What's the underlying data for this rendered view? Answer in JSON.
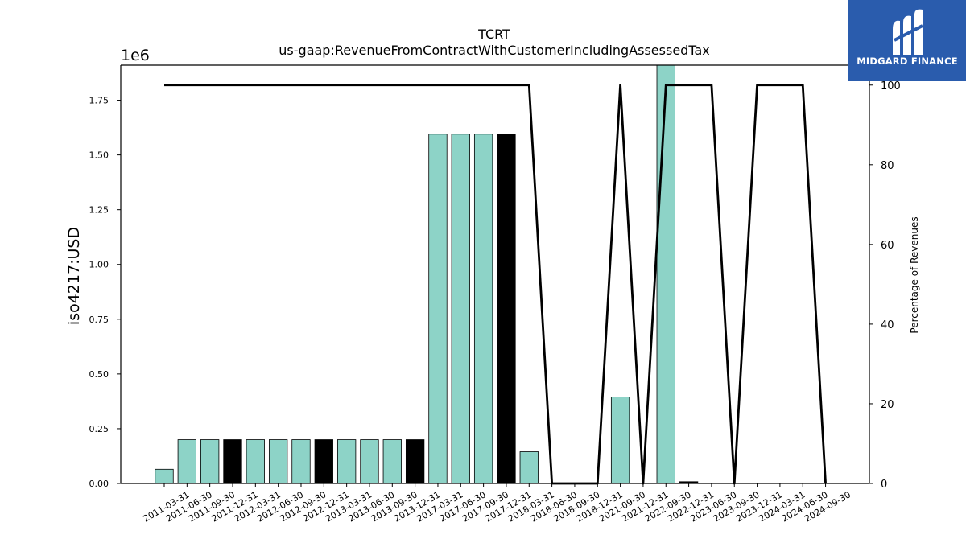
{
  "chart_data": {
    "type": "bar",
    "title": "TCRT",
    "subtitle": "us-gaap:RevenueFromContractWithCustomerIncludingAssessedTax",
    "ylabel": "iso4217:USD",
    "y_offset_label": "1e6",
    "y2label": "Percentage of Revenues",
    "ylim": [
      0,
      1910000
    ],
    "y2lim": [
      0,
      105
    ],
    "yticks": [
      "0.00",
      "0.25",
      "0.50",
      "0.75",
      "1.00",
      "1.25",
      "1.50",
      "1.75"
    ],
    "y2ticks": [
      "0",
      "20",
      "40",
      "60",
      "80",
      "100"
    ],
    "colors": {
      "bar": "#8dd3c7",
      "highlight": "#000000",
      "line": "#000000"
    },
    "categories": [
      "2011-03-31",
      "2011-06-30",
      "2011-09-30",
      "2011-12-31",
      "2012-03-31",
      "2012-06-30",
      "2012-09-30",
      "2012-12-31",
      "2013-03-31",
      "2013-06-30",
      "2013-09-30",
      "2013-12-31",
      "2017-03-31",
      "2017-06-30",
      "2017-09-30",
      "2017-12-31",
      "2018-03-31",
      "2018-06-30",
      "2018-09-30",
      "2018-12-31",
      "2021-09-30",
      "2021-12-31",
      "2022-09-30",
      "2022-12-31",
      "2023-06-30",
      "2023-09-30",
      "2023-12-31",
      "2024-03-31",
      "2024-06-30",
      "2024-09-30"
    ],
    "series": [
      {
        "values": [
          65000,
          200000,
          200000,
          200000,
          200000,
          200000,
          200000,
          200000,
          200000,
          200000,
          200000,
          200000,
          1595000,
          1595000,
          1595000,
          1595000,
          145000,
          0,
          0,
          0,
          395000,
          0,
          1920000,
          8000,
          0,
          0,
          0,
          0,
          0,
          0
        ],
        "highlight": [
          false,
          false,
          false,
          true,
          false,
          false,
          false,
          true,
          false,
          false,
          false,
          true,
          false,
          false,
          false,
          true,
          false,
          false,
          false,
          false,
          false,
          false,
          false,
          true,
          false,
          false,
          false,
          false,
          false,
          false
        ]
      },
      {
        "axis": "right",
        "values": [
          100,
          100,
          100,
          100,
          100,
          100,
          100,
          100,
          100,
          100,
          100,
          100,
          100,
          100,
          100,
          100,
          100,
          0,
          0,
          0,
          100,
          0,
          100,
          100,
          100,
          0,
          100,
          100,
          100,
          0
        ]
      }
    ]
  },
  "logo": {
    "text": "MIDGARD FINANCE"
  }
}
